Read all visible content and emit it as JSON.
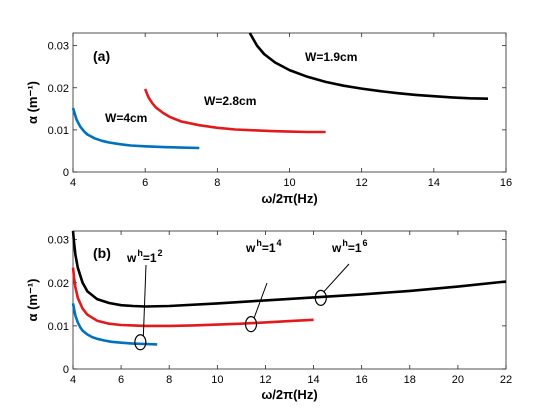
{
  "chart_data": [
    {
      "type": "line",
      "panel_label": "(a)",
      "xlabel": "ω/2π(Hz)",
      "ylabel": "α (m⁻¹)",
      "xlim": [
        4,
        16
      ],
      "ylim": [
        0,
        0.033
      ],
      "xticks": [
        "4",
        "6",
        "8",
        "10",
        "12",
        "14",
        "16"
      ],
      "yticks": [
        "0",
        "0.01",
        "0.02",
        "0.03"
      ],
      "grid": false,
      "series": [
        {
          "name": "W=4cm",
          "color": "#0072BD",
          "x": [
            4.0,
            4.05,
            4.1,
            4.2,
            4.3,
            4.4,
            4.6,
            4.8,
            5.0,
            5.3,
            5.6,
            6.0,
            6.5,
            7.0,
            7.5
          ],
          "y": [
            0.0152,
            0.0138,
            0.0124,
            0.0108,
            0.0097,
            0.0089,
            0.008,
            0.0074,
            0.007,
            0.0066,
            0.0063,
            0.0061,
            0.0059,
            0.0058,
            0.0057
          ]
        },
        {
          "name": "W=2.8cm",
          "color": "#E31A1C",
          "x": [
            6.0,
            6.05,
            6.1,
            6.2,
            6.3,
            6.5,
            6.7,
            7.0,
            7.5,
            8.0,
            8.5,
            9.0,
            9.5,
            10.0,
            10.5,
            11.0
          ],
          "y": [
            0.0197,
            0.0186,
            0.0176,
            0.0163,
            0.0153,
            0.014,
            0.013,
            0.012,
            0.0111,
            0.0105,
            0.0101,
            0.0099,
            0.0097,
            0.0096,
            0.0095,
            0.0095
          ]
        },
        {
          "name": "W=1.9cm",
          "color": "#000000",
          "x": [
            8.9,
            9.1,
            9.3,
            9.6,
            10.0,
            10.5,
            11.0,
            11.5,
            12.0,
            12.5,
            13.0,
            13.5,
            14.0,
            14.5,
            15.0,
            15.5
          ],
          "y": [
            0.033,
            0.03,
            0.028,
            0.026,
            0.0242,
            0.0226,
            0.0214,
            0.0205,
            0.0198,
            0.0192,
            0.0187,
            0.0183,
            0.018,
            0.0177,
            0.0175,
            0.0174
          ]
        }
      ],
      "annotations": [
        "W=4cm",
        "W=2.8cm",
        "W=1.9cm"
      ]
    },
    {
      "type": "line",
      "panel_label": "(b)",
      "xlabel": "ω/2π(Hz)",
      "ylabel": "α (m⁻¹)",
      "xlim": [
        4,
        22
      ],
      "ylim": [
        0,
        0.032
      ],
      "xticks": [
        "4",
        "6",
        "8",
        "10",
        "12",
        "14",
        "16",
        "18",
        "20",
        "22"
      ],
      "yticks": [
        "0",
        "0.01",
        "0.02",
        "0.03"
      ],
      "grid": false,
      "series": [
        {
          "name": "w/h=1/2",
          "color": "#0072BD",
          "x": [
            4.0,
            4.05,
            4.1,
            4.2,
            4.3,
            4.4,
            4.6,
            4.8,
            5.0,
            5.3,
            5.6,
            6.0,
            6.5,
            7.0,
            7.5
          ],
          "y": [
            0.0152,
            0.0138,
            0.0124,
            0.0108,
            0.0097,
            0.0089,
            0.008,
            0.0074,
            0.007,
            0.0066,
            0.0063,
            0.0061,
            0.0059,
            0.0058,
            0.0057
          ]
        },
        {
          "name": "w/h=1/4",
          "color": "#E31A1C",
          "x": [
            4.0,
            4.05,
            4.1,
            4.2,
            4.4,
            4.6,
            5.0,
            5.5,
            6.0,
            7.0,
            8.0,
            9.0,
            10.0,
            11.0,
            12.0,
            13.0,
            14.0
          ],
          "y": [
            0.0235,
            0.021,
            0.019,
            0.0165,
            0.014,
            0.0126,
            0.0112,
            0.0105,
            0.0102,
            0.01,
            0.01,
            0.0101,
            0.0103,
            0.0105,
            0.0108,
            0.0111,
            0.0114
          ]
        },
        {
          "name": "w/h=1/6",
          "color": "#000000",
          "x": [
            4.0,
            4.05,
            4.1,
            4.2,
            4.4,
            4.6,
            5.0,
            5.5,
            6.0,
            6.5,
            7.0,
            8.0,
            10.0,
            12.0,
            14.0,
            16.0,
            18.0,
            20.0,
            22.0
          ],
          "y": [
            0.032,
            0.029,
            0.0265,
            0.0235,
            0.02,
            0.018,
            0.0162,
            0.0153,
            0.0148,
            0.0146,
            0.0145,
            0.0146,
            0.0152,
            0.0159,
            0.0166,
            0.0173,
            0.0181,
            0.0191,
            0.0203
          ]
        }
      ],
      "annotations": [
        {
          "prefix": "w",
          "sub": "h",
          "eq": "=1",
          "sub2": "2",
          "target": [
            6.8,
            0.0062
          ]
        },
        {
          "prefix": "w",
          "sub": "h",
          "eq": "=1",
          "sub2": "4",
          "target": [
            11.4,
            0.0104
          ]
        },
        {
          "prefix": "w",
          "sub": "h",
          "eq": "=1",
          "sub2": "6",
          "target": [
            14.3,
            0.0165
          ]
        }
      ]
    }
  ]
}
